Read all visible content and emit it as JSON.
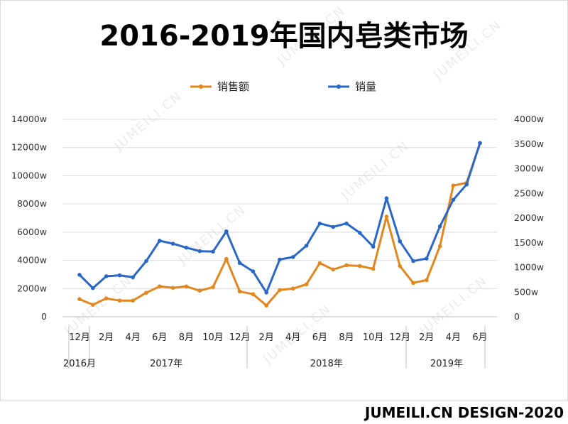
{
  "title": "2016-2019年国内皂类市场",
  "footer": "JUMEILI.CN DESIGN-2020",
  "watermark": "JUMEILI.CN",
  "colors": {
    "sales": "#E2861D",
    "volume": "#2968C8",
    "grid": "#d9d9d9",
    "axis": "#bfbfbf"
  },
  "chart_data": {
    "type": "line",
    "title": "2016-2019年国内皂类市场",
    "categories": [
      "2016-12",
      "2017-01",
      "2017-02",
      "2017-03",
      "2017-04",
      "2017-05",
      "2017-06",
      "2017-07",
      "2017-08",
      "2017-09",
      "2017-10",
      "2017-11",
      "2017-12",
      "2018-01",
      "2018-02",
      "2018-03",
      "2018-04",
      "2018-05",
      "2018-06",
      "2018-07",
      "2018-08",
      "2018-09",
      "2018-10",
      "2018-11",
      "2018-12",
      "2019-01",
      "2019-02",
      "2019-03",
      "2019-04",
      "2019-05",
      "2019-06"
    ],
    "x_tick_labels": [
      "12月",
      "2月",
      "4月",
      "6月",
      "8月",
      "10月",
      "12月",
      "2月",
      "4月",
      "6月",
      "8月",
      "10月",
      "12月",
      "2月",
      "4月",
      "6月"
    ],
    "x_tick_indices": [
      0,
      2,
      4,
      6,
      8,
      10,
      12,
      14,
      16,
      18,
      20,
      22,
      24,
      26,
      28,
      30
    ],
    "year_labels": [
      {
        "label": "2016月",
        "start": 0,
        "end": 0
      },
      {
        "label": "2017年",
        "start": 1,
        "end": 12
      },
      {
        "label": "2018年",
        "start": 13,
        "end": 24
      },
      {
        "label": "2019年",
        "start": 25,
        "end": 31
      }
    ],
    "left_axis": {
      "ticks": [
        "0",
        "2000w",
        "4000w",
        "6000w",
        "8000w",
        "10000w",
        "12000w",
        "14000w"
      ],
      "ylim": [
        0,
        14000
      ]
    },
    "right_axis": {
      "ticks": [
        "0",
        "500w",
        "1000w",
        "1500w",
        "2000w",
        "2500w",
        "3000w",
        "3500w",
        "4000w"
      ],
      "ylim": [
        0,
        4000
      ]
    },
    "series": [
      {
        "name": "销售额",
        "axis": "left",
        "values": [
          1250,
          850,
          1300,
          1150,
          1150,
          1700,
          2150,
          2050,
          2150,
          1850,
          2100,
          4100,
          1800,
          1600,
          800,
          1900,
          2000,
          2300,
          3800,
          3350,
          3650,
          3600,
          3400,
          7100,
          3600,
          2400,
          2600,
          5000,
          9300,
          9500,
          12300
        ]
      },
      {
        "name": "销量",
        "axis": "right",
        "values": [
          850,
          580,
          820,
          840,
          800,
          1130,
          1540,
          1480,
          1400,
          1330,
          1320,
          1730,
          1090,
          920,
          490,
          1160,
          1210,
          1440,
          1890,
          1820,
          1890,
          1700,
          1420,
          2400,
          1530,
          1130,
          1180,
          1830,
          2370,
          2680,
          3520
        ]
      }
    ],
    "legend": [
      "销售额",
      "销量"
    ],
    "legend_position": "top"
  }
}
